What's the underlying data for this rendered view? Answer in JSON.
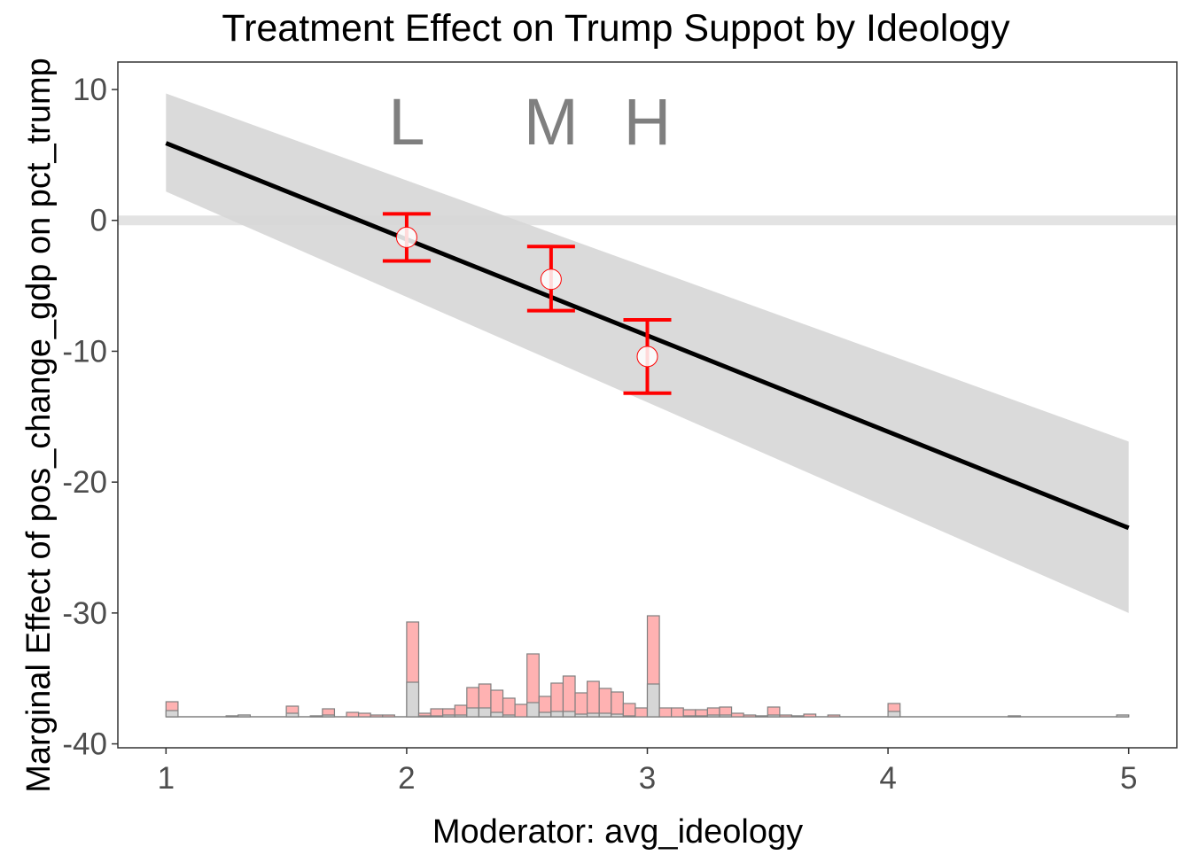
{
  "chart_data": {
    "type": "line",
    "title": "Treatment Effect on Trump Suppot by Ideology",
    "xlabel": "Moderator: avg_ideology",
    "ylabel": "Marginal Effect of pos_change_gdp on pct_trump",
    "xlim": [
      0.8,
      5.2
    ],
    "ylim": [
      -40.3,
      12.1
    ],
    "xticks": [
      1,
      2,
      3,
      4,
      5
    ],
    "yticks": [
      10,
      0,
      -10,
      -20,
      -30,
      -40
    ],
    "grid": false,
    "reference_line_y": 0,
    "estimate_line": {
      "x": [
        1,
        5
      ],
      "y": [
        5.9,
        -23.5
      ]
    },
    "confidence_band": {
      "x": [
        1,
        5
      ],
      "upper": [
        9.7,
        -16.9
      ],
      "lower": [
        2.2,
        -30.0
      ]
    },
    "binned_estimates": [
      {
        "label": "L",
        "x": 2.0,
        "y": -1.3,
        "lower": -3.1,
        "upper": 0.5
      },
      {
        "label": "M",
        "x": 2.6,
        "y": -4.5,
        "lower": -6.9,
        "upper": -2.0
      },
      {
        "label": "H",
        "x": 3.0,
        "y": -10.4,
        "lower": -13.2,
        "upper": -7.6
      }
    ],
    "histogram": {
      "bin_start": 1.0,
      "bin_width": 0.05,
      "total_counts": [
        17,
        0,
        0,
        0,
        0,
        1,
        2,
        0,
        0,
        0,
        12,
        0,
        1,
        9,
        0,
        5,
        4,
        2,
        2,
        0,
        107,
        4,
        9,
        9,
        13,
        33,
        37,
        30,
        21,
        14,
        71,
        23,
        38,
        46,
        27,
        40,
        32,
        28,
        15,
        10,
        114,
        10,
        10,
        8,
        8,
        10,
        11,
        4,
        2,
        1,
        11,
        2,
        1,
        3,
        0,
        2,
        0,
        0,
        0,
        0,
        15,
        0,
        0,
        0,
        0,
        0,
        0,
        0,
        0,
        0,
        1,
        0,
        0,
        0,
        0,
        0,
        0,
        0,
        0,
        2
      ],
      "control_counts": [
        7,
        0,
        0,
        0,
        0,
        1,
        2,
        0,
        0,
        0,
        4,
        0,
        1,
        2,
        0,
        0,
        0,
        0,
        0,
        0,
        39,
        1,
        1,
        2,
        2,
        10,
        10,
        5,
        2,
        0,
        16,
        5,
        6,
        6,
        3,
        4,
        4,
        3,
        1,
        0,
        37,
        0,
        0,
        1,
        1,
        2,
        2,
        0,
        0,
        1,
        2,
        0,
        1,
        0,
        0,
        0,
        0,
        0,
        0,
        0,
        6,
        0,
        0,
        0,
        0,
        0,
        0,
        0,
        0,
        0,
        1,
        0,
        0,
        0,
        0,
        0,
        0,
        0,
        0,
        2
      ]
    },
    "colors": {
      "estimate_line": "#000000",
      "band": "#d6d6d6",
      "reference_line": "#e3e3e3",
      "error_bars": "#ff0000",
      "hist_total": "#ffb2b2",
      "hist_control": "#d6d6d6",
      "hist_border": "#808080",
      "bin_labels": "#7f7f7f"
    }
  }
}
